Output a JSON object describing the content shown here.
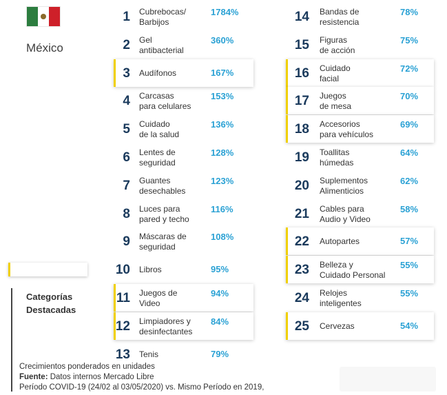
{
  "header": {
    "country": "México"
  },
  "colors": {
    "rank": "#1a3a5c",
    "percent": "#2aa1d4",
    "highlight": "#f0d000",
    "flag_green": "#2c7d3f",
    "flag_red": "#ce2029"
  },
  "legend": {
    "title_line1": "Categorías",
    "title_line2": "Destacadas"
  },
  "items": [
    {
      "rank": "1",
      "name1": "Cubrebocas/",
      "name2": "Barbijos",
      "pct": "1784%",
      "highlight": false
    },
    {
      "rank": "2",
      "name1": "Gel",
      "name2": "antibacterial",
      "pct": "360%",
      "highlight": false
    },
    {
      "rank": "3",
      "name1": "Audífonos",
      "name2": "",
      "pct": "167%",
      "highlight": true
    },
    {
      "rank": "4",
      "name1": "Carcasas",
      "name2": "para celulares",
      "pct": "153%",
      "highlight": false
    },
    {
      "rank": "5",
      "name1": "Cuidado",
      "name2": "de la salud",
      "pct": "136%",
      "highlight": false
    },
    {
      "rank": "6",
      "name1": "Lentes de",
      "name2": "seguridad",
      "pct": "128%",
      "highlight": false
    },
    {
      "rank": "7",
      "name1": "Guantes",
      "name2": "desechables",
      "pct": "123%",
      "highlight": false
    },
    {
      "rank": "8",
      "name1": "Luces para",
      "name2": "pared y techo",
      "pct": "116%",
      "highlight": false
    },
    {
      "rank": "9",
      "name1": "Máscaras  de",
      "name2": "seguridad",
      "pct": "108%",
      "highlight": false
    },
    {
      "rank": "10",
      "name1": "Libros",
      "name2": "",
      "pct": "95%",
      "highlight": false
    },
    {
      "rank": "11",
      "name1": "Juegos de",
      "name2": "Video",
      "pct": "94%",
      "highlight": true
    },
    {
      "rank": "12",
      "name1": "Limpiadores y",
      "name2": "desinfectantes",
      "pct": "84%",
      "highlight": true
    },
    {
      "rank": "13",
      "name1": "Tenis",
      "name2": "",
      "pct": "79%",
      "highlight": false
    },
    {
      "rank": "14",
      "name1": "Bandas de",
      "name2": "resistencia",
      "pct": "78%",
      "highlight": false
    },
    {
      "rank": "15",
      "name1": "Figuras",
      "name2": "de acción",
      "pct": "75%",
      "highlight": false
    },
    {
      "rank": "16",
      "name1": "Cuidado",
      "name2": "facial",
      "pct": "72%",
      "highlight": true
    },
    {
      "rank": "17",
      "name1": "Juegos",
      "name2": "de mesa",
      "pct": "70%",
      "highlight": true
    },
    {
      "rank": "18",
      "name1": "Accesorios",
      "name2": "para vehículos",
      "pct": "69%",
      "highlight": true
    },
    {
      "rank": "19",
      "name1": "Toallitas",
      "name2": "húmedas",
      "pct": "64%",
      "highlight": false
    },
    {
      "rank": "20",
      "name1": "Suplementos",
      "name2": "Alimenticios",
      "pct": "62%",
      "highlight": false
    },
    {
      "rank": "21",
      "name1": "Cables para",
      "name2": "Audio y Video",
      "pct": "58%",
      "highlight": false
    },
    {
      "rank": "22",
      "name1": "Autopartes",
      "name2": "",
      "pct": "57%",
      "highlight": true
    },
    {
      "rank": "23",
      "name1": "Belleza y",
      "name2": "Cuidado Personal",
      "pct": "55%",
      "highlight": true
    },
    {
      "rank": "24",
      "name1": "Relojes",
      "name2": "inteligentes",
      "pct": "55%",
      "highlight": false
    },
    {
      "rank": "25",
      "name1": "Cervezas",
      "name2": "",
      "pct": "54%",
      "highlight": true
    }
  ],
  "footer": {
    "line1": "Crecimientos ponderados en unidades",
    "source_label": "Fuente:",
    "source_text": " Datos internos Mercado Libre",
    "line3": "Período COVID-19 (24/02 al 03/05/2020) vs. Mismo Período en 2019,"
  }
}
